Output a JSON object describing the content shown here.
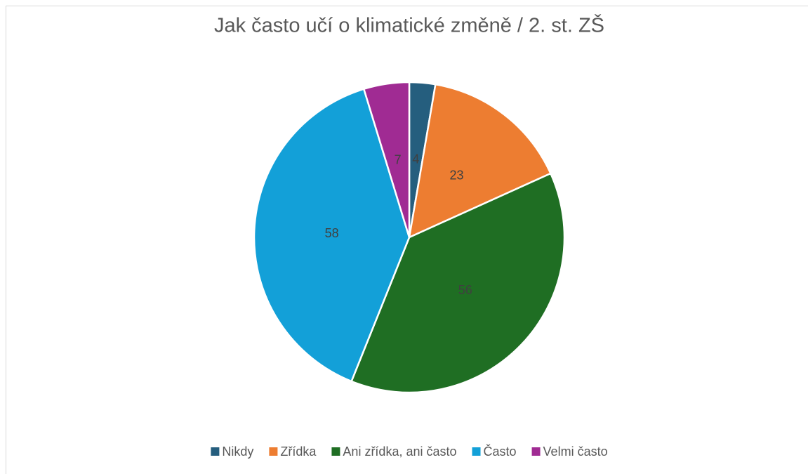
{
  "chart_data": {
    "type": "pie",
    "title": "Jak často učí o klimatické změně / 2. st. ZŠ",
    "categories": [
      "Nikdy",
      "Zřídka",
      "Ani zřídka, ani často",
      "Často",
      "Velmi často"
    ],
    "values": [
      4,
      23,
      56,
      58,
      7
    ],
    "colors": [
      "#255e7e",
      "#ed7d31",
      "#1f6e23",
      "#13a0d8",
      "#a02b93"
    ],
    "legend": "bottom"
  }
}
